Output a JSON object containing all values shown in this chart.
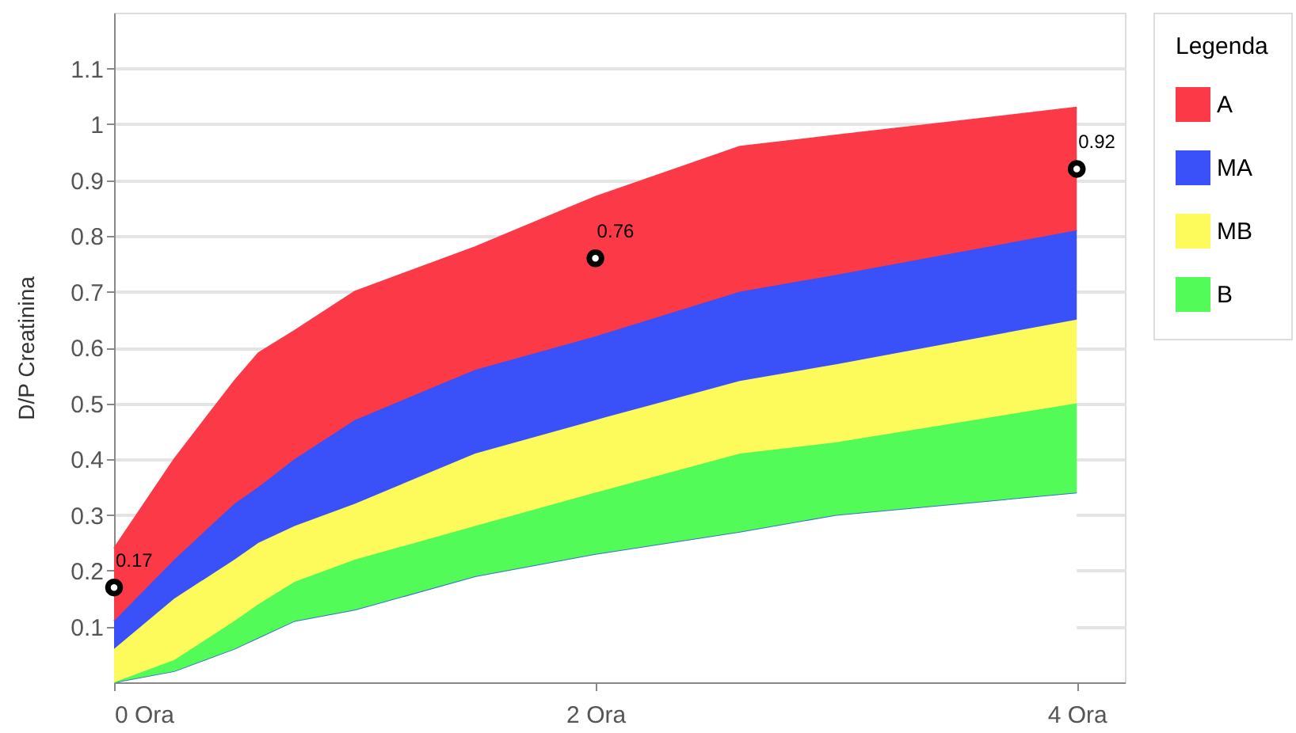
{
  "chart_data": {
    "type": "area",
    "ylabel": "D/P Creatinina",
    "legend_title": "Legenda",
    "legend": "right",
    "grid": "y",
    "xlim": [
      0,
      4.2
    ],
    "xticks": [
      {
        "value": 0,
        "label": "0 Ora"
      },
      {
        "value": 2,
        "label": "2 Ora"
      },
      {
        "value": 4,
        "label": "4 Ora"
      }
    ],
    "ylim": [
      0,
      1.2
    ],
    "yticks": [
      0.1,
      0.2,
      0.3,
      0.4,
      0.5,
      0.6,
      0.7,
      0.8,
      0.9,
      {
        "value": 1,
        "label": "1"
      },
      1.1
    ],
    "x": [
      0,
      0.25,
      0.5,
      0.6,
      0.75,
      1,
      1.5,
      2,
      2.6,
      3,
      4
    ],
    "stacked": true,
    "series": [
      {
        "color": "#ffffff",
        "values": [
          0,
          0.02,
          0.06,
          0.08,
          0.11,
          0.13,
          0.19,
          0.23,
          0.27,
          0.3,
          0.34
        ]
      },
      {
        "name": "B",
        "color": "#52fb58",
        "values": [
          0,
          0.02,
          0.05,
          0.06,
          0.07,
          0.09,
          0.09,
          0.11,
          0.14,
          0.13,
          0.16
        ]
      },
      {
        "name": "MB",
        "color": "#fdfb5c",
        "values": [
          0.06,
          0.11,
          0.11,
          0.11,
          0.1,
          0.1,
          0.13,
          0.13,
          0.13,
          0.14,
          0.15
        ]
      },
      {
        "name": "MA",
        "color": "#3a50f8",
        "values": [
          0.05,
          0.07,
          0.1,
          0.1,
          0.12,
          0.15,
          0.15,
          0.15,
          0.16,
          0.16,
          0.16
        ]
      },
      {
        "name": "A",
        "color": "#fc3a47",
        "values": [
          0.13,
          0.18,
          0.22,
          0.24,
          0.23,
          0.23,
          0.22,
          0.25,
          0.26,
          0.25,
          0.22
        ]
      },
      {
        "type": "scatter",
        "marker": "circle",
        "color": "#000000",
        "x": [
          0,
          2,
          4
        ],
        "values": [
          0.17,
          0.76,
          0.92
        ],
        "value_labels": [
          "0.17",
          "0.76",
          "0.92"
        ]
      }
    ]
  }
}
